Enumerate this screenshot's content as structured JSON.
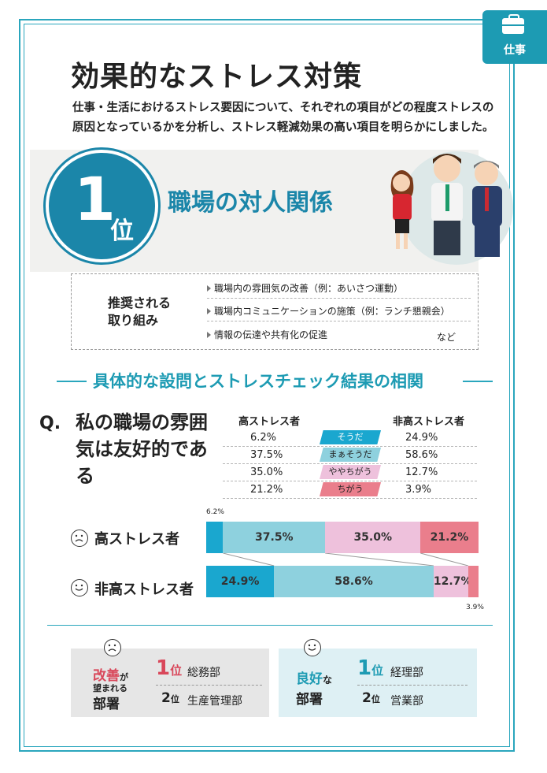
{
  "tag": {
    "label": "仕事",
    "icon": "briefcase-icon"
  },
  "title": "効果的なストレス対策",
  "intro": "仕事・生活におけるストレス要因について、それぞれの項目がどの程度ストレスの原因となっているかを分析し、ストレス軽減効果の高い項目を明らかにしました。",
  "rank": {
    "number": "1",
    "unit": "位",
    "title": "職場の対人関係"
  },
  "recommend": {
    "label_line1": "推奨される",
    "label_line2": "取り組み",
    "items": [
      "職場内の雰囲気の改善（例：あいさつ運動）",
      "職場内コミュニケーションの施策（例：ランチ懇親会）",
      "情報の伝達や共有化の促進"
    ],
    "etc": "など"
  },
  "section_title": "具体的な設問とストレスチェック結果の相関",
  "question": {
    "mark": "Q.",
    "text": "私の職場の雰囲気は友好的である"
  },
  "table": {
    "col_high": "高ストレス者",
    "col_low": "非高ストレス者",
    "rows": [
      {
        "answer": "そうだ",
        "high": "6.2%",
        "low": "24.9%",
        "color": "#1aa7cf"
      },
      {
        "answer": "まぁそうだ",
        "high": "37.5%",
        "low": "58.6%",
        "color": "#8ed1de"
      },
      {
        "answer": "ややちがう",
        "high": "35.0%",
        "low": "12.7%",
        "color": "#eec1dc"
      },
      {
        "answer": "ちがう",
        "high": "21.2%",
        "low": "3.9%",
        "color": "#ea7e8c"
      }
    ]
  },
  "chart_data": {
    "type": "bar",
    "stacked": true,
    "orientation": "horizontal",
    "categories": [
      "高ストレス者",
      "非高ストレス者"
    ],
    "series": [
      {
        "name": "そうだ",
        "values": [
          6.2,
          24.9
        ],
        "color": "#1aa7cf"
      },
      {
        "name": "まぁそうだ",
        "values": [
          37.5,
          58.6
        ],
        "color": "#8ed1de"
      },
      {
        "name": "ややちがう",
        "values": [
          35.0,
          12.7
        ],
        "color": "#eec1dc"
      },
      {
        "name": "ちがう",
        "values": [
          21.2,
          3.9
        ],
        "color": "#ea7e8c"
      }
    ],
    "small_labels": [
      "6.2%",
      "3.9%"
    ],
    "segment_labels_high": [
      "37.5%",
      "35.0%",
      "21.2%"
    ],
    "segment_labels_low": [
      "24.9%",
      "58.6%",
      "12.7%"
    ],
    "xlim": [
      0,
      100
    ]
  },
  "bar_labels": {
    "high": "高ストレス者",
    "low": "非高ストレス者"
  },
  "departments": {
    "improve": {
      "label_a": "改善",
      "label_b": "が",
      "label_c": "望まれる",
      "label_d": "部署",
      "rank1_num": "1",
      "rank1_unit": "位",
      "rank1_name": "総務部",
      "rank2_num": "2",
      "rank2_unit": "位",
      "rank2_name": "生産管理部"
    },
    "good": {
      "label_a": "良好",
      "label_b": "な",
      "label_d": "部署",
      "rank1_num": "1",
      "rank1_unit": "位",
      "rank1_name": "経理部",
      "rank2_num": "2",
      "rank2_unit": "位",
      "rank2_name": "営業部"
    }
  },
  "colors": {
    "accent": "#1d9bb3",
    "rank_circle": "#1b86a9",
    "improve_red": "#d9475a"
  }
}
